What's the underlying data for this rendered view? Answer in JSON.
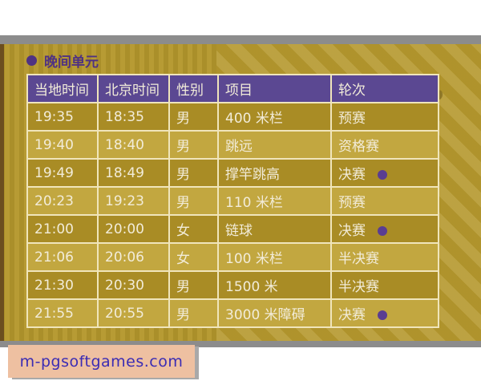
{
  "section": {
    "title": "晚间单元"
  },
  "table": {
    "headers": {
      "local_time": "当地时间",
      "beijing_time": "北京时间",
      "gender": "性别",
      "event": "项目",
      "round": "轮次"
    },
    "rows": [
      {
        "local": "19:35",
        "beijing": "18:35",
        "gender": "男",
        "event": "400 米栏",
        "round": "预赛",
        "final_dot": false
      },
      {
        "local": "19:40",
        "beijing": "18:40",
        "gender": "男",
        "event": "跳远",
        "round": "资格赛",
        "final_dot": false
      },
      {
        "local": "19:49",
        "beijing": "18:49",
        "gender": "男",
        "event": "撑竿跳高",
        "round": "决赛",
        "final_dot": true
      },
      {
        "local": "20:23",
        "beijing": "19:23",
        "gender": "男",
        "event": "110 米栏",
        "round": "预赛",
        "final_dot": false
      },
      {
        "local": "21:00",
        "beijing": "20:00",
        "gender": "女",
        "event": "链球",
        "round": "决赛",
        "final_dot": true
      },
      {
        "local": "21:06",
        "beijing": "20:06",
        "gender": "女",
        "event": "100 米栏",
        "round": "半决赛",
        "final_dot": false
      },
      {
        "local": "21:30",
        "beijing": "20:30",
        "gender": "男",
        "event": "1500 米",
        "round": "半决赛",
        "final_dot": false
      },
      {
        "local": "21:55",
        "beijing": "20:55",
        "gender": "男",
        "event": "3000 米障碍",
        "round": "决赛",
        "final_dot": true
      }
    ]
  },
  "footer": {
    "site_label": "m-pgsoftgames.com"
  },
  "colors": {
    "header_purple": "#5b4892",
    "title_purple": "#4f3282",
    "final_dot_purple": "#5a3d91",
    "row_dark_gold": "#a98c25",
    "row_light_gold": "#c2a740",
    "panel_gold": "#b5982d",
    "cell_border_cream": "#f0e5bb",
    "gray_strip": "#8c8c8c",
    "footer_box_peach": "#eec0a1",
    "footer_text_blue": "#3b2cb4"
  }
}
